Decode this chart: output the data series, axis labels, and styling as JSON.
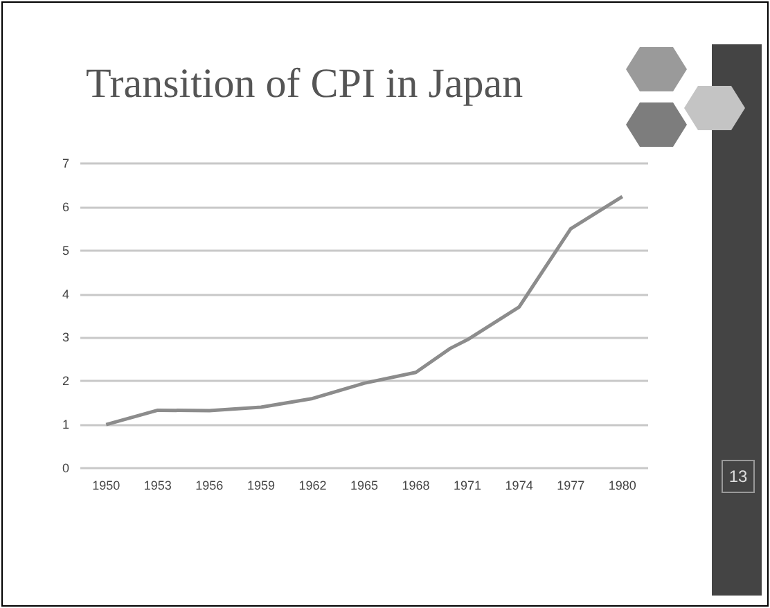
{
  "chart_data": {
    "type": "line",
    "title": "Transition of CPI in Japan",
    "x": [
      1950,
      1953,
      1956,
      1959,
      1962,
      1965,
      1968,
      1970,
      1971,
      1974,
      1977,
      1980
    ],
    "series": [
      {
        "color": "#8c8c8c",
        "values": [
          1.0,
          1.33,
          1.32,
          1.4,
          1.6,
          1.95,
          2.2,
          2.75,
          2.95,
          3.7,
          5.5,
          6.24
        ]
      }
    ],
    "xlim": [
      1948.5,
      1981.5
    ],
    "xticks": [
      1950,
      1953,
      1956,
      1959,
      1962,
      1965,
      1968,
      1971,
      1974,
      1977,
      1980
    ],
    "ylim": [
      0,
      7
    ],
    "yticks": [
      0,
      1,
      2,
      3,
      4,
      5,
      6,
      7
    ],
    "grid": "y",
    "marker": "none",
    "line_style": "solid",
    "annotations": [
      "13"
    ]
  }
}
